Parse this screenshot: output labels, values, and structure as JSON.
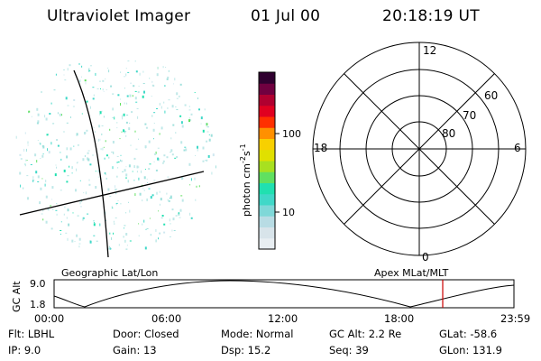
{
  "header": {
    "instrument": "Ultraviolet Imager",
    "date": "01 Jul 00",
    "time": "20:18:19 UT"
  },
  "colorbar": {
    "unit": "photon cm",
    "unit_sup1": "-2",
    "unit_mid": "s",
    "unit_sup2": "-1",
    "ticks": [
      "100",
      "10"
    ],
    "colors": [
      "#e8eef2",
      "#d8e4ea",
      "#b8dce4",
      "#7fd8d8",
      "#40d8c8",
      "#20e0b0",
      "#60e060",
      "#a8e020",
      "#e0e000",
      "#f8d000",
      "#ff9000",
      "#ff3000",
      "#e00020",
      "#b00030",
      "#700040",
      "#300030"
    ]
  },
  "polar_plot": {
    "hour_labels": {
      "top": "12",
      "left": "18",
      "right": "6",
      "bottom": "0"
    },
    "lat_labels": [
      "60",
      "70",
      "80"
    ]
  },
  "timeline": {
    "ylabel": "GC Alt",
    "y_ticks": [
      "9.0",
      "1.8"
    ],
    "left_label": "Geographic Lat/Lon",
    "right_label": "Apex MLat/MLT",
    "x_ticks": [
      "00:00",
      "06:00",
      "12:00",
      "18:00",
      "23:59"
    ],
    "marker_color": "#cc0000"
  },
  "info": {
    "flt": "Flt: LBHL",
    "ip": "IP:  9.0",
    "door": "Door: Closed",
    "gain": "Gain: 13",
    "mode": "Mode: Normal",
    "dsp": "Dsp:   15.2",
    "gcalt": "GC Alt: 2.2 Re",
    "seq": "Seq: 39",
    "glat": "GLat: -58.6",
    "glon": "GLon: 131.9"
  }
}
